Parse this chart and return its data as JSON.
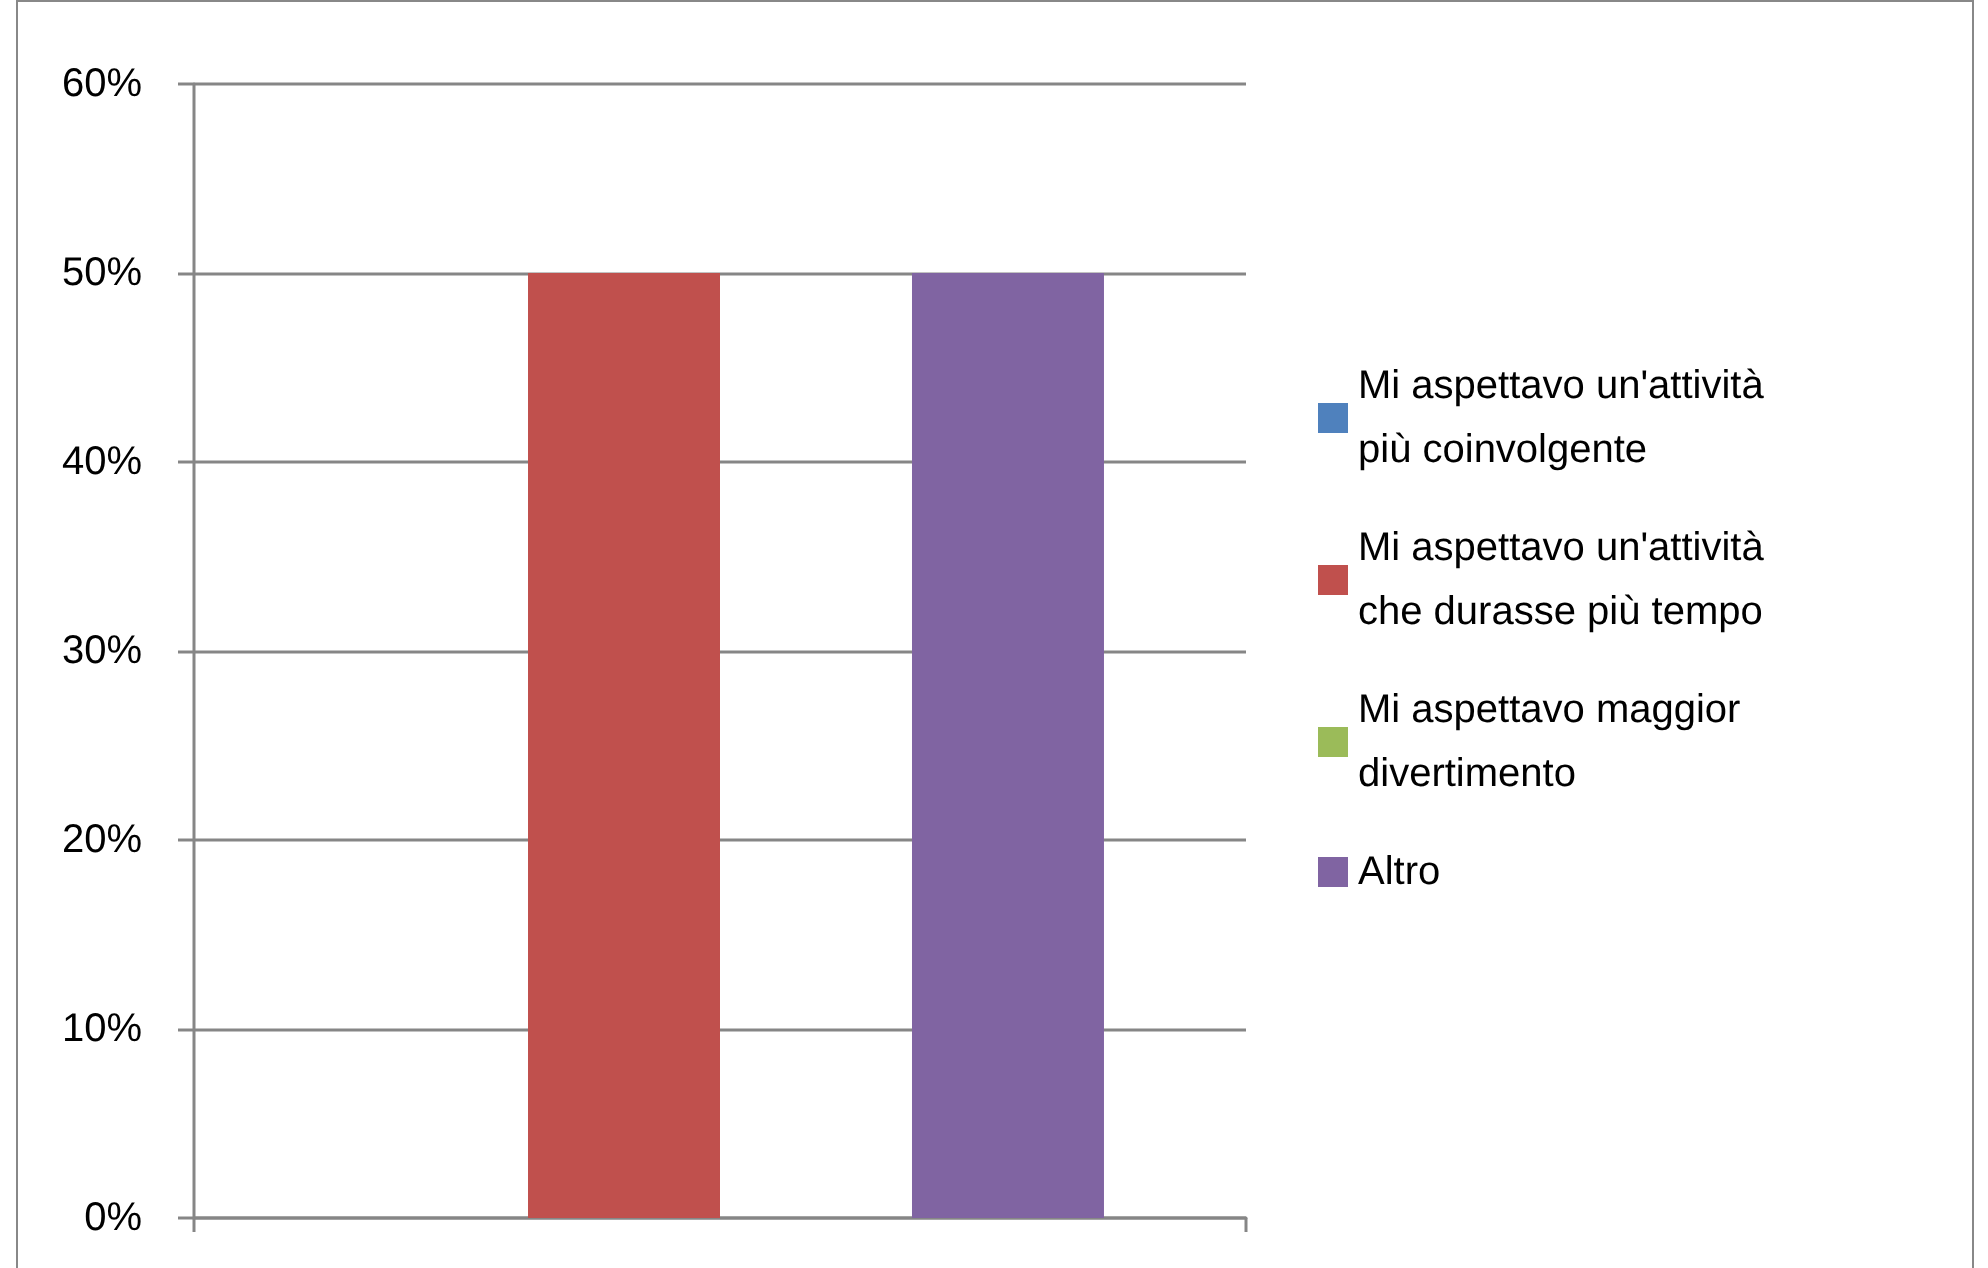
{
  "chart_data": {
    "type": "bar",
    "categories": [
      null
    ],
    "series": [
      {
        "name": "Mi aspettavo un'attività più coinvolgente",
        "color": "#4f81bd",
        "values": [
          0
        ]
      },
      {
        "name": "Mi aspettavo un'attività che durasse più tempo",
        "color": "#c0504d",
        "values": [
          50
        ]
      },
      {
        "name": "Mi aspettavo maggior divertimento",
        "color": "#9bbb59",
        "values": [
          0
        ]
      },
      {
        "name": "Altro",
        "color": "#8064a2",
        "values": [
          50
        ]
      }
    ],
    "ylim": [
      0,
      60
    ],
    "yticks": [
      {
        "value": 0,
        "label": "0%"
      },
      {
        "value": 10,
        "label": "10%"
      },
      {
        "value": 20,
        "label": "20%"
      },
      {
        "value": 30,
        "label": "30%"
      },
      {
        "value": 40,
        "label": "40%"
      },
      {
        "value": 50,
        "label": "50%"
      },
      {
        "value": 60,
        "label": "60%"
      }
    ],
    "grid": "y",
    "legend": "right"
  }
}
